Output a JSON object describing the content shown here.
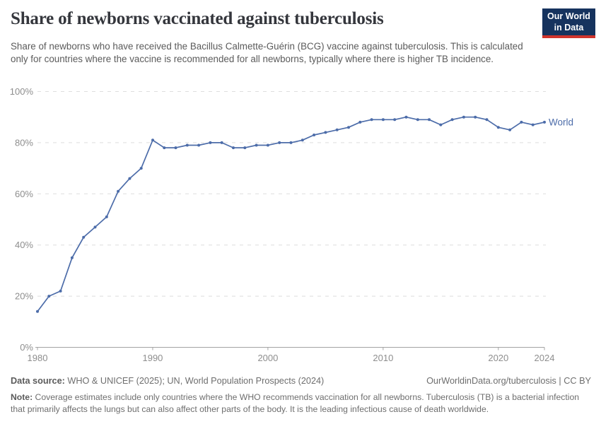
{
  "header": {
    "title": "Share of newborns vaccinated against tuberculosis",
    "subtitle": "Share of newborns who have received the Bacillus Calmette-Guérin (BCG) vaccine against tuberculosis. This is calculated only for countries where the vaccine is recommended for all newborns, typically where there is higher TB incidence.",
    "logo": {
      "line1": "Our World",
      "line2": "in Data",
      "bg_color": "#16335e",
      "stripe_color": "#d0342c"
    }
  },
  "chart_data": {
    "type": "line",
    "title": "Share of newborns vaccinated against tuberculosis",
    "xlabel": "",
    "ylabel": "",
    "ylim": [
      0,
      100
    ],
    "yticks": [
      0,
      20,
      40,
      60,
      80,
      100
    ],
    "ytick_labels": [
      "0%",
      "20%",
      "40%",
      "60%",
      "80%",
      "100%"
    ],
    "xticks": [
      1980,
      1990,
      2000,
      2010,
      2020,
      2024
    ],
    "grid": "horizontal-dashed",
    "legend_position": "end-of-line",
    "x": [
      1980,
      1981,
      1982,
      1983,
      1984,
      1985,
      1986,
      1987,
      1988,
      1989,
      1990,
      1991,
      1992,
      1993,
      1994,
      1995,
      1996,
      1997,
      1998,
      1999,
      2000,
      2001,
      2002,
      2003,
      2004,
      2005,
      2006,
      2007,
      2008,
      2009,
      2010,
      2011,
      2012,
      2013,
      2014,
      2015,
      2016,
      2017,
      2018,
      2019,
      2020,
      2021,
      2022,
      2023,
      2024
    ],
    "series": [
      {
        "name": "World",
        "color": "#4C6CA9",
        "values": [
          14,
          20,
          22,
          35,
          43,
          47,
          51,
          61,
          66,
          70,
          81,
          78,
          78,
          79,
          79,
          80,
          80,
          78,
          78,
          79,
          79,
          80,
          80,
          81,
          83,
          84,
          85,
          86,
          88,
          89,
          89,
          89,
          90,
          89,
          89,
          87,
          89,
          90,
          90,
          89,
          86,
          85,
          88,
          87,
          88
        ]
      }
    ],
    "style": {
      "grid_color": "#dedede",
      "axis_color": "#a3a3a3",
      "tick_label_color": "#8e8e8e"
    }
  },
  "footer": {
    "datasource_label": "Data source:",
    "datasource_text": " WHO & UNICEF (2025); UN, World Population Prospects (2024)",
    "link": "OurWorldinData.org/tuberculosis | CC BY",
    "note_label": "Note:",
    "note_text": " Coverage estimates include only countries where the WHO recommends vaccination for all newborns. Tuberculosis (TB) is a bacterial infection that primarily affects the lungs but can also affect other parts of the body. It is the leading infectious cause of death worldwide."
  }
}
